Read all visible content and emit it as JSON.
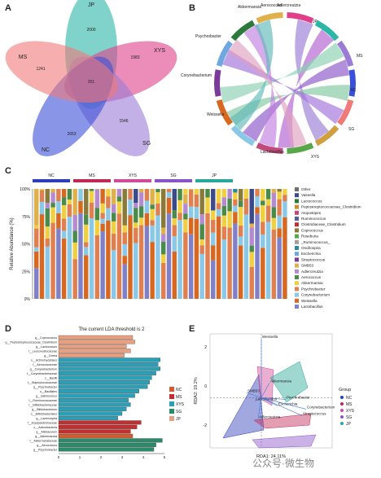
{
  "panel_labels": {
    "a": "A",
    "b": "B",
    "c": "C",
    "d": "D",
    "e": "E"
  },
  "venn": {
    "sets": [
      "JP",
      "XYS",
      "SG",
      "NC",
      "MS"
    ],
    "colors": [
      "#2bb6a6",
      "#e0408a",
      "#9a7cd6",
      "#3a50d8",
      "#f07a78"
    ],
    "center": "201",
    "unique": [
      "2000",
      "1983",
      "1546",
      "2653",
      "1241"
    ]
  },
  "chord_labels": [
    "Lactobacillus",
    "Weissella",
    "Corynebacterium",
    "Psychrobacter",
    "Akkermansia",
    "Aerococcus",
    "Adlercreutzia",
    "NC",
    "SG",
    "XYS",
    "MS",
    "JP"
  ],
  "stacked": {
    "groups": [
      "NC",
      "MS",
      "XYS",
      "SG",
      "JP"
    ],
    "group_colors": [
      "#2c3fb8",
      "#c02858",
      "#d04c9a",
      "#8a55c8",
      "#27a89a"
    ],
    "ylabel": "Relative Abundance (%)",
    "yticks": [
      "100%",
      "75%",
      "50%",
      "25%",
      "0%"
    ],
    "legend": [
      "Other",
      "Vaseella",
      "Lactococcus",
      "Peptostreptococcaceae_Clostridium",
      "Atopostipes",
      "Ruminococcus",
      "Clostridiaceae_Clostridium",
      "Coprococcus",
      "Roseburia",
      "_Ruminococcus_",
      "Oscillospira",
      "Escherichia",
      "Streptococcus",
      "SMB53",
      "Adlercreutzia",
      "Aerococcus",
      "Akkermansia",
      "Psychrobacter",
      "Corynebacterium",
      "Weissella",
      "Lactobacillus"
    ],
    "legend_colors": [
      "#6e6e6e",
      "#3a4a8a",
      "#2a7a3a",
      "#d08a2a",
      "#c04a7a",
      "#5a5a9a",
      "#c03030",
      "#8a7a3a",
      "#58a84a",
      "#a0a0a0",
      "#2e8a9a",
      "#6fa8e0",
      "#7a3a9a",
      "#e0b04a",
      "#b48ad0",
      "#4a8a4a",
      "#f0d040",
      "#e08050",
      "#8ac8e8",
      "#d86820",
      "#8080c8"
    ]
  },
  "lda": {
    "title": "The current LDA threshold is 2",
    "xticks": [
      "0",
      "1",
      "2",
      "3",
      "4",
      "5"
    ],
    "rows": [
      {
        "label": "g__Coprococcus",
        "value": 3.5,
        "group": 4
      },
      {
        "label": "g__Peptostreptococcaceae_Clostridium",
        "value": 3.6,
        "group": 4
      },
      {
        "label": "g__Lactococcus",
        "value": 3.2,
        "group": 4
      },
      {
        "label": "f__Leuconostocaceae",
        "value": 3.4,
        "group": 4
      },
      {
        "label": "g__Dorea",
        "value": 3.1,
        "group": 4
      },
      {
        "label": "o__Actinomycetales",
        "value": 4.8,
        "group": 2
      },
      {
        "label": "f__Aerococcaceae",
        "value": 4.7,
        "group": 2
      },
      {
        "label": "g__Corynebacterium",
        "value": 4.8,
        "group": 2
      },
      {
        "label": "f__Corynebacteriaceae",
        "value": 4.6,
        "group": 2
      },
      {
        "label": "c__Bacilli",
        "value": 4.4,
        "group": 2
      },
      {
        "label": "f__Staphylococcaceae",
        "value": 4.3,
        "group": 2
      },
      {
        "label": "g__Psychrobacter",
        "value": 4.2,
        "group": 2
      },
      {
        "label": "o__Bacillales",
        "value": 3.8,
        "group": 2
      },
      {
        "label": "g__Salinicoccus",
        "value": 3.6,
        "group": 2
      },
      {
        "label": "f__Ruminococcaceae",
        "value": 3.3,
        "group": 2
      },
      {
        "label": "f__Bifidobacteriaceae",
        "value": 3.4,
        "group": 2
      },
      {
        "label": "g__Bifidobacterium",
        "value": 3.2,
        "group": 2
      },
      {
        "label": "o__Bifidobacteriales",
        "value": 3.0,
        "group": 2
      },
      {
        "label": "g__Lachnospira",
        "value": 2.8,
        "group": 2
      },
      {
        "label": "f__Erysipelotrichaceae",
        "value": 3.9,
        "group": 1
      },
      {
        "label": "c__Actinobacteria",
        "value": 3.7,
        "group": 1
      },
      {
        "label": "g__Allobaculum",
        "value": 3.4,
        "group": 1
      },
      {
        "label": "g__Akkermansia",
        "value": 3.5,
        "group": 0
      },
      {
        "label": "f__Akkermansiaceae",
        "value": 4.9,
        "group": 3
      },
      {
        "label": "g__Aerococcus",
        "value": 4.6,
        "group": 3
      },
      {
        "label": "g__Psychrobacter",
        "value": 4.5,
        "group": 3
      }
    ],
    "legend": [
      "NC",
      "MS",
      "XYS",
      "SG",
      "JP"
    ],
    "legend_colors": [
      "#d85a2a",
      "#c03030",
      "#2aa0b8",
      "#2a8a6a",
      "#e8a080"
    ]
  },
  "rda": {
    "xlabel": "RDA1: 24.11%",
    "ylabel": "RDA2: 19.2%",
    "yticks": [
      "2",
      "0",
      "-2"
    ],
    "legend_title": "Group",
    "legend": [
      "NC",
      "MS",
      "XYS",
      "SG",
      "JP"
    ],
    "legend_colors": [
      "#2c3fb8",
      "#c02858",
      "#d04c9a",
      "#8a55c8",
      "#27a89a"
    ],
    "arrow_labels": [
      "Weissella",
      "Akkermansia",
      "Lactobacillus",
      "Psychrobacter",
      "Escherichia",
      "Corynebacterium",
      "Streptococcus",
      "Adlercreutzia",
      "SMB53"
    ]
  },
  "watermark": "公众号·微生物"
}
